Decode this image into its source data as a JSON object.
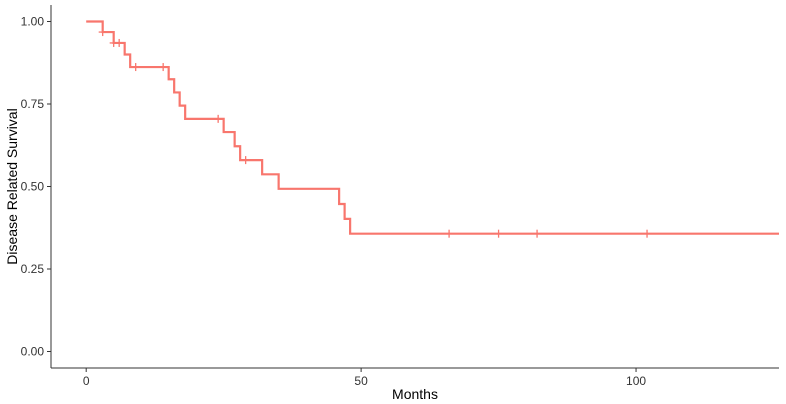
{
  "chart_data": {
    "type": "line",
    "title": "",
    "xlabel": "Months",
    "ylabel": "Disease Related Survival",
    "xlim": [
      -6.4,
      126
    ],
    "ylim": [
      -0.05,
      1.05
    ],
    "xticks": [
      0,
      50,
      100
    ],
    "xtick_labels": [
      "0",
      "50",
      "100"
    ],
    "yticks": [
      0,
      0.25,
      0.5,
      0.75,
      1.0
    ],
    "ytick_labels": [
      "0.00",
      "0.25",
      "0.50",
      "0.75",
      "1.00"
    ],
    "grid": false,
    "legend": "none",
    "series": [
      {
        "color": "#F8766D",
        "step_x": [
          0,
          3,
          5,
          7,
          8,
          15,
          16,
          17,
          18,
          25,
          27,
          28,
          32,
          35,
          46,
          47,
          48,
          126
        ],
        "step_y": [
          1.0,
          0.968,
          0.935,
          0.9,
          0.862,
          0.825,
          0.785,
          0.745,
          0.705,
          0.665,
          0.622,
          0.58,
          0.537,
          0.493,
          0.447,
          0.402,
          0.357,
          0.357
        ],
        "censor_x": [
          3,
          5,
          6,
          9,
          14,
          24,
          29,
          66,
          75,
          82,
          102
        ],
        "censor_y": [
          0.968,
          0.935,
          0.935,
          0.862,
          0.862,
          0.705,
          0.58,
          0.357,
          0.357,
          0.357,
          0.357
        ]
      }
    ]
  }
}
